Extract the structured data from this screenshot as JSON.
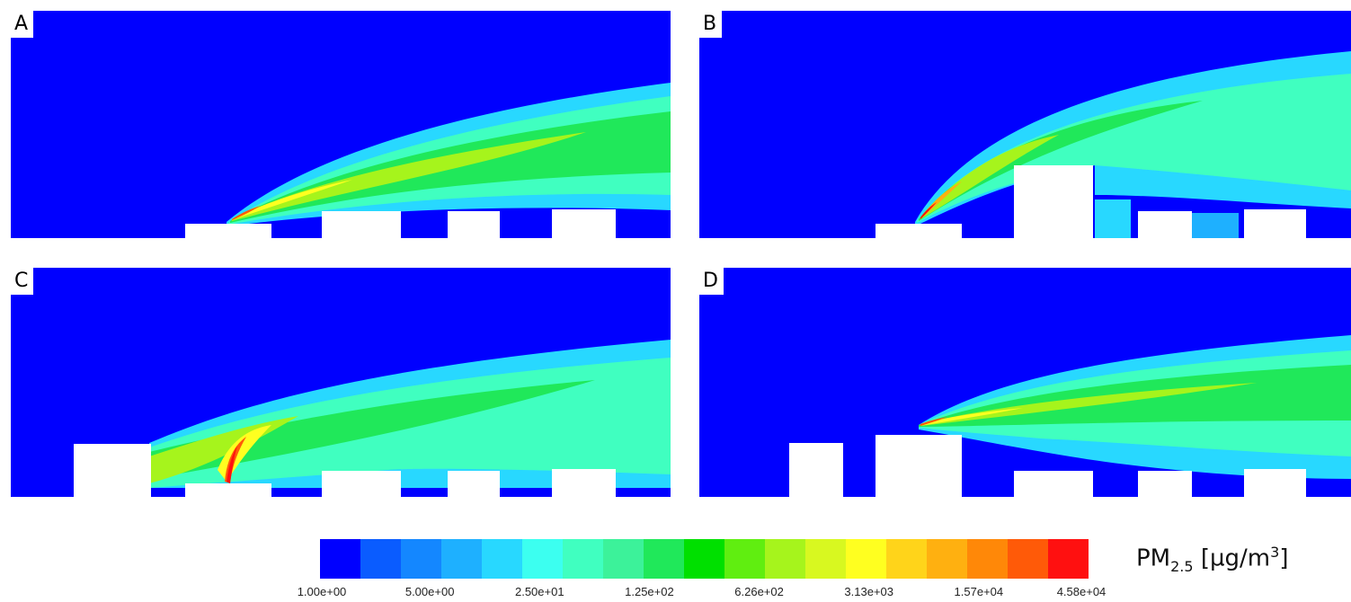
{
  "panels": [
    {
      "label": "A"
    },
    {
      "label": "B"
    },
    {
      "label": "C"
    },
    {
      "label": "D"
    }
  ],
  "colorbar": {
    "colors": [
      "#0000ff",
      "#0a5cff",
      "#1487ff",
      "#1eb0ff",
      "#28d8ff",
      "#3cfff0",
      "#40ffc0",
      "#3cf29a",
      "#20e85a",
      "#00e000",
      "#60ee10",
      "#a6f41c",
      "#d8f820",
      "#ffff20",
      "#ffd41a",
      "#ffb010",
      "#ff8808",
      "#ff5a08",
      "#ff1010"
    ],
    "tick_labels": [
      "1.00e+00",
      "5.00e+00",
      "2.50e+01",
      "1.25e+02",
      "6.26e+02",
      "3.13e+03",
      "1.57e+04",
      "4.58e+04"
    ]
  },
  "units": {
    "prefix": "PM",
    "subscript": "2.5",
    "unit_main": " [µg/m",
    "unit_sup": "3",
    "unit_end": "]"
  }
}
